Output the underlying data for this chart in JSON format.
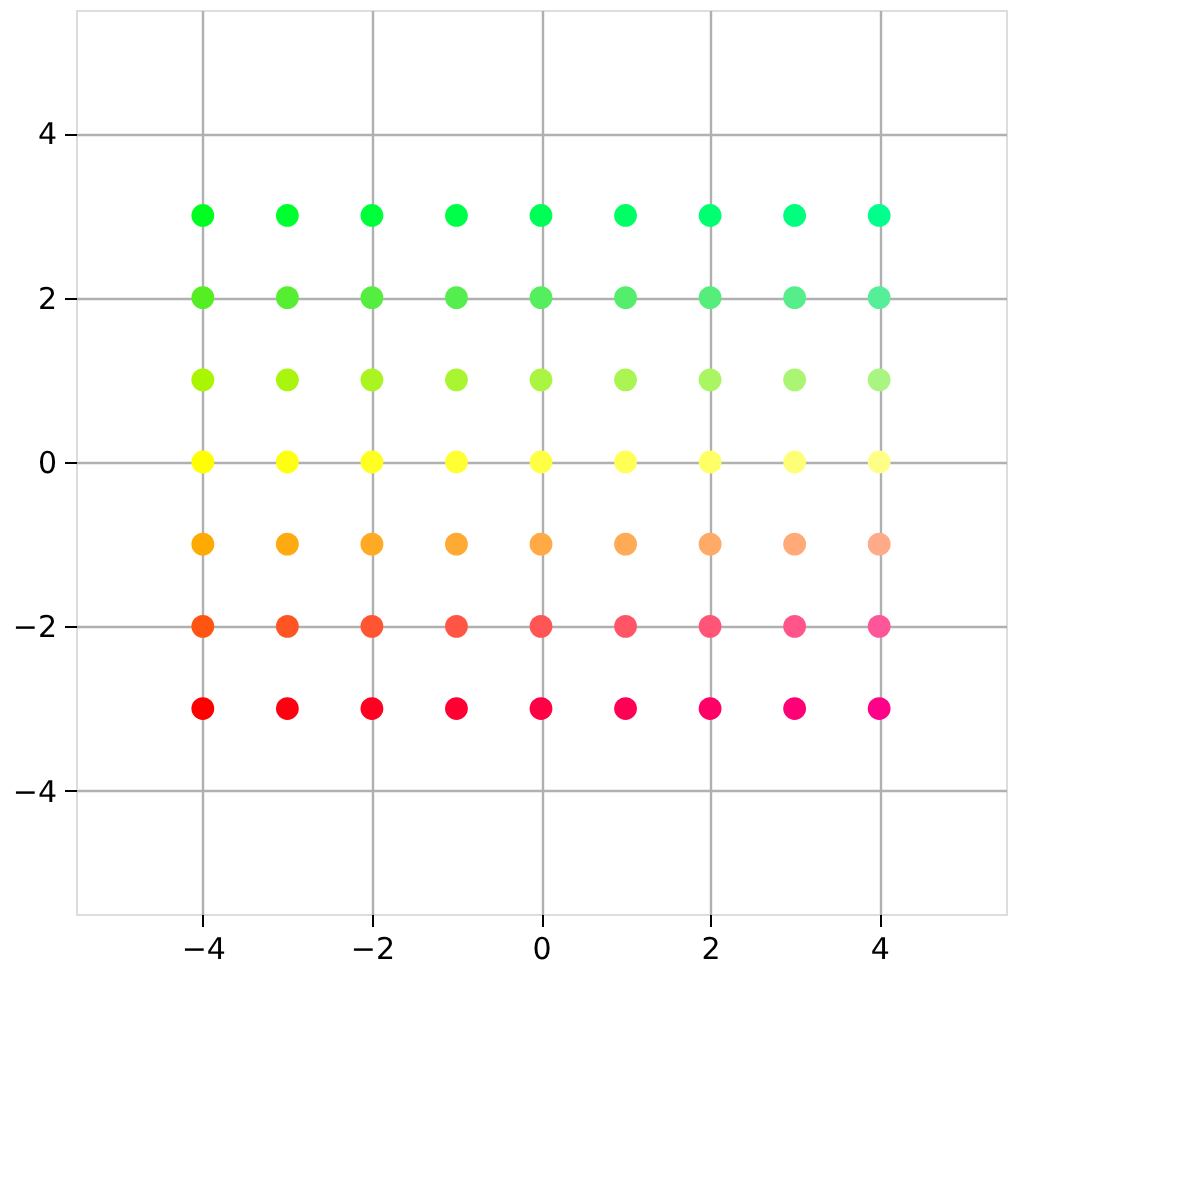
{
  "chart_data": {
    "type": "scatter",
    "marker": "circle",
    "grid": true,
    "x": [
      -4,
      -3,
      -2,
      -1,
      0,
      1,
      2,
      3,
      4
    ],
    "xlim": [
      -5.5,
      5.5
    ],
    "ylim": [
      -5.5,
      5.5
    ],
    "xticks": [
      -4,
      -2,
      0,
      2,
      4
    ],
    "yticks": [
      -4,
      -2,
      0,
      2,
      4
    ],
    "series": [
      {
        "values": [
          3,
          3,
          3,
          3,
          3,
          3,
          3,
          3,
          3
        ],
        "colors": [
          "#00ff20",
          "#00ff2e",
          "#00ff3b",
          "#00ff49",
          "#00ff56",
          "#00ff64",
          "#00ff71",
          "#00ff7f",
          "#00ff8c"
        ]
      },
      {
        "values": [
          2,
          2,
          2,
          2,
          2,
          2,
          2,
          2,
          2
        ],
        "colors": [
          "#55ee22",
          "#55ee31",
          "#55ee40",
          "#55ee4f",
          "#55ee5e",
          "#55ee6c",
          "#55ee7b",
          "#55ee8a",
          "#55ee99"
        ]
      },
      {
        "values": [
          1,
          1,
          1,
          1,
          1,
          1,
          1,
          1,
          1
        ],
        "colors": [
          "#aaf500",
          "#aaf510",
          "#aaf521",
          "#aaf531",
          "#aaf541",
          "#aaf551",
          "#aaf562",
          "#aaf572",
          "#aaf582"
        ]
      },
      {
        "values": [
          0,
          0,
          0,
          0,
          0,
          0,
          0,
          0,
          0
        ],
        "colors": [
          "#ffff00",
          "#ffff11",
          "#ffff22",
          "#ffff33",
          "#ffff44",
          "#ffff55",
          "#ffff66",
          "#ffff77",
          "#ffff88"
        ]
      },
      {
        "values": [
          -1,
          -1,
          -1,
          -1,
          -1,
          -1,
          -1,
          -1,
          -1
        ],
        "colors": [
          "#ffaa00",
          "#ffaa11",
          "#ffaa22",
          "#ffaa33",
          "#ffaa44",
          "#ffaa55",
          "#ffaa66",
          "#ffaa77",
          "#ffaa88"
        ]
      },
      {
        "values": [
          -2,
          -2,
          -2,
          -2,
          -2,
          -2,
          -2,
          -2,
          -2
        ],
        "colors": [
          "#ff5511",
          "#ff5522",
          "#ff5533",
          "#ff5544",
          "#ff5555",
          "#ff5566",
          "#ff5577",
          "#ff5588",
          "#ff5599"
        ]
      },
      {
        "values": [
          -3,
          -3,
          -3,
          -3,
          -3,
          -3,
          -3,
          -3,
          -3
        ],
        "colors": [
          "#ff0000",
          "#ff0011",
          "#ff0022",
          "#ff0033",
          "#ff0044",
          "#ff0055",
          "#ff0066",
          "#ff0077",
          "#ff0088"
        ]
      }
    ]
  }
}
